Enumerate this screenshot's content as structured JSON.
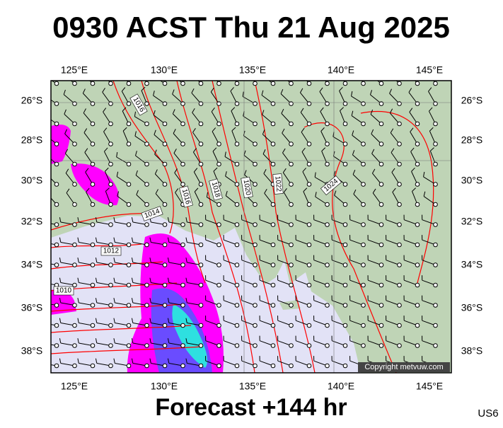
{
  "title": "0930 ACST Thu 21 Aug 2025",
  "footer": "Forecast +144 hr",
  "model": "US6",
  "copyright": "Copyright metvuw.com",
  "map": {
    "lon_labels": [
      "125°E",
      "130°E",
      "135°E",
      "140°E",
      "145°E"
    ],
    "lat_labels": [
      "26°S",
      "28°S",
      "30°S",
      "32°S",
      "34°S",
      "36°S",
      "38°S"
    ],
    "isobar_labels": [
      "1016",
      "1016",
      "1018",
      "1020",
      "1022",
      "1024",
      "1014",
      "1012",
      "1010"
    ]
  }
}
